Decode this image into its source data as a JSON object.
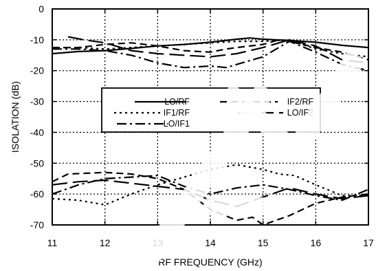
{
  "chart_data": {
    "type": "line",
    "title": "",
    "xlabel": "RF FREQUENCY (GHz)",
    "ylabel": "ISOLATION (dB)",
    "xlim": [
      11,
      17
    ],
    "ylim": [
      -70,
      0
    ],
    "x_ticks": [
      "11",
      "12",
      "13",
      "14",
      "15",
      "16",
      "17"
    ],
    "y_ticks": [
      "0",
      "-10",
      "-20",
      "-30",
      "-40",
      "-50",
      "-60",
      "-70"
    ],
    "grid": true,
    "legend_position": "center",
    "series": [
      {
        "name": "LO/RF",
        "style": "solid",
        "x": [
          11.0,
          11.5,
          12.0,
          12.5,
          13.0,
          13.5,
          14.0,
          14.5,
          14.75,
          15.0,
          15.5,
          16.0,
          16.5,
          17.0
        ],
        "y": [
          -14.5,
          -13.8,
          -13.5,
          -12.8,
          -12.0,
          -11.5,
          -10.8,
          -9.8,
          -9.4,
          -9.8,
          -10.2,
          -10.8,
          -11.8,
          -12.5
        ]
      },
      {
        "name": "IF2/RF",
        "style": "dash",
        "x": [
          11.0,
          11.5,
          12.0,
          12.5,
          13.0,
          13.5,
          14.0,
          14.3,
          14.5,
          15.0,
          15.3,
          15.5,
          16.0,
          16.5,
          17.0
        ],
        "y": [
          -12.5,
          -12.5,
          -11.5,
          -11.0,
          -12.0,
          -13.5,
          -14.0,
          -13.0,
          -12.5,
          -11.5,
          -10.0,
          -10.5,
          -12.5,
          -14.0,
          -16.5
        ]
      },
      {
        "name": "IF1/RF",
        "style": "dot",
        "x": [
          11.0,
          11.5,
          12.0,
          12.5,
          13.0,
          13.5,
          14.0,
          14.5,
          15.0,
          15.5,
          16.0,
          16.5,
          17.0
        ],
        "y": [
          -12.5,
          -12.5,
          -13.0,
          -12.5,
          -12.0,
          -11.5,
          -11.0,
          -10.5,
          -10.5,
          -10.0,
          -13.0,
          -14.5,
          -15.5
        ]
      },
      {
        "name": "LO/IF2",
        "style": "longdash",
        "x": [
          11.3,
          11.6,
          12.0,
          12.5,
          13.0,
          13.5,
          14.0,
          14.5,
          15.0,
          15.5,
          16.0,
          16.5,
          17.0
        ],
        "y": [
          -9.0,
          -10.0,
          -11.0,
          -13.5,
          -14.5,
          -15.0,
          -15.5,
          -14.5,
          -12.5,
          -10.0,
          -12.0,
          -16.5,
          -17.5
        ]
      },
      {
        "name": "LO/IF1",
        "style": "dashdot",
        "x": [
          11.0,
          11.5,
          12.0,
          12.5,
          13.0,
          13.5,
          14.0,
          14.3,
          14.5,
          15.0,
          15.5,
          16.0,
          16.5,
          17.0
        ],
        "y": [
          -13.0,
          -13.0,
          -13.5,
          -15.0,
          -17.5,
          -19.0,
          -18.5,
          -19.0,
          -18.0,
          -15.5,
          -10.5,
          -14.0,
          -18.0,
          -20.0
        ]
      },
      {
        "name": "IF1/RF",
        "style": "dot",
        "x": [
          11.0,
          11.5,
          12.0,
          12.5,
          13.0,
          13.5,
          14.0,
          14.5,
          15.0,
          15.3,
          15.6,
          16.0,
          16.5,
          17.0
        ],
        "y": [
          -61.5,
          -62.0,
          -63.5,
          -60.0,
          -57.0,
          -54.5,
          -52.0,
          -50.5,
          -52.0,
          -53.5,
          -54.0,
          -57.0,
          -60.5,
          -60.5
        ]
      },
      {
        "name": "IF2/RF",
        "style": "dash",
        "x": [
          11.0,
          11.3,
          12.0,
          12.5,
          13.0,
          13.5,
          14.0,
          14.5,
          14.8,
          15.0,
          15.5,
          16.0,
          16.5,
          17.0
        ],
        "y": [
          -56.0,
          -53.5,
          -53.0,
          -53.5,
          -55.0,
          -58.5,
          -65.0,
          -68.5,
          -67.5,
          -70.0,
          -67.0,
          -63.0,
          -61.0,
          -60.0
        ]
      },
      {
        "name": "LO/IF1",
        "style": "dashdot",
        "x": [
          11.0,
          11.5,
          12.0,
          12.5,
          13.0,
          13.5,
          14.0,
          14.5,
          15.0,
          15.5,
          16.0,
          16.5,
          17.0
        ],
        "y": [
          -60.0,
          -57.0,
          -55.0,
          -54.5,
          -54.0,
          -57.5,
          -60.0,
          -58.0,
          -57.0,
          -58.5,
          -60.5,
          -62.0,
          -58.5
        ]
      },
      {
        "name": "LO/IF2",
        "style": "longdash",
        "x": [
          11.0,
          11.5,
          12.0,
          12.5,
          13.0,
          13.5,
          14.0,
          14.5,
          15.0,
          15.5,
          16.0,
          16.5,
          17.0
        ],
        "y": [
          -57.0,
          -56.0,
          -55.5,
          -56.5,
          -57.5,
          -58.5,
          -62.0,
          -64.0,
          -61.0,
          -58.0,
          -60.0,
          -61.5,
          -60.5
        ]
      }
    ],
    "legend": [
      {
        "label": "LO/RF",
        "style": "solid"
      },
      {
        "label": "IF2/RF",
        "style": "dash"
      },
      {
        "label": "IF1/RF",
        "style": "dot"
      },
      {
        "label": "LO/IF2",
        "style": "longdash"
      },
      {
        "label": "LO/IF1",
        "style": "dashdot"
      }
    ]
  }
}
